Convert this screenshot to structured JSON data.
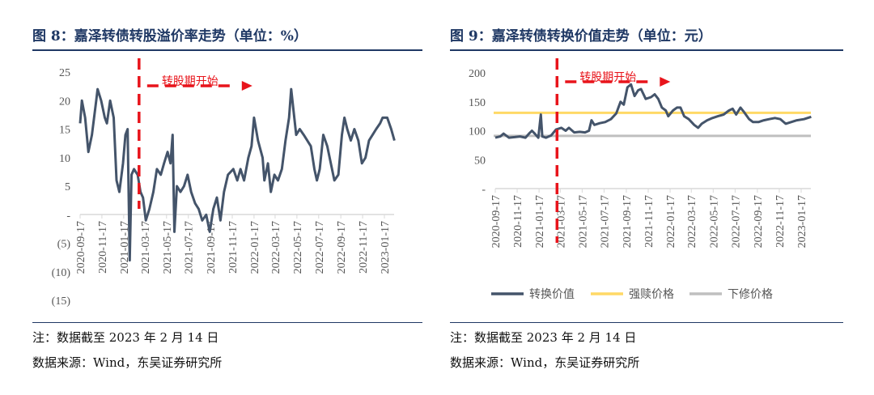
{
  "left": {
    "title": "图 8：嘉泽转债转股溢价率走势（单位：%）",
    "note": "注：数据截至 2023 年 2 月 14 日",
    "source": "数据来源：Wind，东吴证券研究所"
  },
  "right": {
    "title": "图 9：嘉泽转债转换价值走势（单位：元）",
    "note": "注：数据截至 2023 年 2 月 14 日",
    "source": "数据来源：Wind，东吴证券研究所"
  },
  "chart_data": [
    {
      "type": "line",
      "ylim": [
        -15,
        25
      ],
      "yticks": [
        25,
        20,
        15,
        10,
        5,
        0,
        -5,
        -10,
        -15
      ],
      "ytick_labels": [
        "25",
        "20",
        "15",
        "10",
        "5",
        "-",
        "(5)",
        "(10)",
        "(15)"
      ],
      "xticks": [
        "2020-09-17",
        "2020-11-17",
        "2021-01-17",
        "2021-03-17",
        "2021-05-17",
        "2021-07-17",
        "2021-09-17",
        "2021-11-17",
        "2022-01-17",
        "2022-03-17",
        "2022-05-17",
        "2022-07-17",
        "2022-09-17",
        "2022-11-17",
        "2023-01-17"
      ],
      "annotation": {
        "text": "转股期开始",
        "date": "2021-03-01"
      },
      "colors": {
        "line": "#44546a",
        "annotation": "#e8141b"
      },
      "series": [
        {
          "points": [
            [
              "2020-09-17",
              16
            ],
            [
              "2020-09-22",
              20
            ],
            [
              "2020-10-01",
              17
            ],
            [
              "2020-10-10",
              11
            ],
            [
              "2020-10-20",
              14
            ],
            [
              "2020-11-01",
              20
            ],
            [
              "2020-11-05",
              22
            ],
            [
              "2020-11-15",
              20
            ],
            [
              "2020-11-25",
              17
            ],
            [
              "2020-12-01",
              16
            ],
            [
              "2020-12-10",
              20
            ],
            [
              "2020-12-20",
              17
            ],
            [
              "2020-12-28",
              6
            ],
            [
              "2021-01-05",
              4
            ],
            [
              "2021-01-15",
              9
            ],
            [
              "2021-01-22",
              14
            ],
            [
              "2021-01-28",
              15
            ],
            [
              "2021-02-03",
              -8
            ],
            [
              "2021-02-08",
              7
            ],
            [
              "2021-02-15",
              8
            ],
            [
              "2021-02-25",
              7
            ],
            [
              "2021-03-05",
              4
            ],
            [
              "2021-03-12",
              3
            ],
            [
              "2021-03-20",
              -1
            ],
            [
              "2021-03-30",
              1
            ],
            [
              "2021-04-10",
              4
            ],
            [
              "2021-04-20",
              8
            ],
            [
              "2021-05-01",
              7
            ],
            [
              "2021-05-10",
              9
            ],
            [
              "2021-05-20",
              11
            ],
            [
              "2021-05-28",
              9
            ],
            [
              "2021-06-03",
              14
            ],
            [
              "2021-06-08",
              -3
            ],
            [
              "2021-06-15",
              5
            ],
            [
              "2021-06-25",
              4
            ],
            [
              "2021-07-05",
              5
            ],
            [
              "2021-07-15",
              7
            ],
            [
              "2021-07-25",
              4
            ],
            [
              "2021-08-05",
              2
            ],
            [
              "2021-08-15",
              1
            ],
            [
              "2021-08-25",
              -1
            ],
            [
              "2021-09-05",
              0
            ],
            [
              "2021-09-15",
              -3
            ],
            [
              "2021-09-25",
              1
            ],
            [
              "2021-10-05",
              3
            ],
            [
              "2021-10-15",
              -1
            ],
            [
              "2021-10-25",
              4
            ],
            [
              "2021-11-05",
              7
            ],
            [
              "2021-11-20",
              8
            ],
            [
              "2021-12-01",
              6
            ],
            [
              "2021-12-10",
              8
            ],
            [
              "2021-12-20",
              6
            ],
            [
              "2022-01-01",
              10
            ],
            [
              "2022-01-10",
              12
            ],
            [
              "2022-01-17",
              17
            ],
            [
              "2022-01-28",
              13
            ],
            [
              "2022-02-10",
              10
            ],
            [
              "2022-02-15",
              6
            ],
            [
              "2022-02-25",
              9
            ],
            [
              "2022-03-05",
              4
            ],
            [
              "2022-03-15",
              7
            ],
            [
              "2022-03-25",
              6
            ],
            [
              "2022-04-05",
              8
            ],
            [
              "2022-04-15",
              13
            ],
            [
              "2022-04-25",
              17
            ],
            [
              "2022-05-01",
              22
            ],
            [
              "2022-05-08",
              18
            ],
            [
              "2022-05-15",
              14
            ],
            [
              "2022-05-25",
              15
            ],
            [
              "2022-06-05",
              14
            ],
            [
              "2022-06-15",
              13
            ],
            [
              "2022-06-25",
              12
            ],
            [
              "2022-07-05",
              8
            ],
            [
              "2022-07-12",
              6
            ],
            [
              "2022-07-20",
              8
            ],
            [
              "2022-07-30",
              14
            ],
            [
              "2022-08-10",
              12
            ],
            [
              "2022-08-20",
              9
            ],
            [
              "2022-08-30",
              6
            ],
            [
              "2022-09-10",
              7
            ],
            [
              "2022-09-20",
              14
            ],
            [
              "2022-09-27",
              17
            ],
            [
              "2022-10-05",
              15
            ],
            [
              "2022-10-15",
              13
            ],
            [
              "2022-10-25",
              15
            ],
            [
              "2022-11-05",
              13
            ],
            [
              "2022-11-15",
              9
            ],
            [
              "2022-11-25",
              10
            ],
            [
              "2022-12-05",
              13
            ],
            [
              "2022-12-15",
              14
            ],
            [
              "2022-12-25",
              15
            ],
            [
              "2023-01-05",
              16
            ],
            [
              "2023-01-12",
              17
            ],
            [
              "2023-01-25",
              17
            ],
            [
              "2023-02-05",
              15
            ],
            [
              "2023-02-14",
              13
            ]
          ]
        }
      ]
    },
    {
      "type": "line",
      "ylim": [
        0,
        200
      ],
      "yticks": [
        200,
        150,
        100,
        50,
        0
      ],
      "ytick_labels": [
        "200",
        "150",
        "100",
        "50",
        "-"
      ],
      "xticks": [
        "2020-09-17",
        "2020-11-17",
        "2021-01-17",
        "2021-03-17",
        "2021-05-17",
        "2021-07-17",
        "2021-09-17",
        "2021-11-17",
        "2022-01-17",
        "2022-03-17",
        "2022-05-17",
        "2022-07-17",
        "2022-09-17",
        "2022-11-17",
        "2023-01-17"
      ],
      "annotation": {
        "text": "转股期开始",
        "date": "2021-03-08"
      },
      "legend": {
        "position": "bottom"
      },
      "colors": {
        "conversion": "#44546a",
        "redemption": "#ffd966",
        "revision": "#bfbfbf",
        "annotation": "#e8141b"
      },
      "series": [
        {
          "name": "转换价值",
          "points": [
            [
              "2020-09-17",
              88
            ],
            [
              "2020-10-01",
              90
            ],
            [
              "2020-10-10",
              95
            ],
            [
              "2020-10-25",
              88
            ],
            [
              "2020-11-10",
              89
            ],
            [
              "2020-11-25",
              90
            ],
            [
              "2020-12-10",
              88
            ],
            [
              "2020-12-20",
              95
            ],
            [
              "2020-12-28",
              100
            ],
            [
              "2021-01-05",
              95
            ],
            [
              "2021-01-15",
              88
            ],
            [
              "2021-01-22",
              128
            ],
            [
              "2021-01-26",
              90
            ],
            [
              "2021-02-05",
              88
            ],
            [
              "2021-02-20",
              92
            ],
            [
              "2021-03-05",
              102
            ],
            [
              "2021-03-20",
              105
            ],
            [
              "2021-04-01",
              100
            ],
            [
              "2021-04-10",
              105
            ],
            [
              "2021-04-25",
              97
            ],
            [
              "2021-05-10",
              98
            ],
            [
              "2021-05-25",
              97
            ],
            [
              "2021-06-05",
              100
            ],
            [
              "2021-06-12",
              118
            ],
            [
              "2021-06-20",
              110
            ],
            [
              "2021-07-05",
              113
            ],
            [
              "2021-07-20",
              115
            ],
            [
              "2021-08-05",
              120
            ],
            [
              "2021-08-20",
              130
            ],
            [
              "2021-09-01",
              150
            ],
            [
              "2021-09-10",
              145
            ],
            [
              "2021-09-20",
              175
            ],
            [
              "2021-09-30",
              180
            ],
            [
              "2021-10-10",
              160
            ],
            [
              "2021-10-20",
              170
            ],
            [
              "2021-10-28",
              172
            ],
            [
              "2021-11-10",
              155
            ],
            [
              "2021-11-25",
              158
            ],
            [
              "2021-12-05",
              163
            ],
            [
              "2021-12-15",
              155
            ],
            [
              "2021-12-25",
              140
            ],
            [
              "2022-01-05",
              135
            ],
            [
              "2022-01-12",
              125
            ],
            [
              "2022-01-25",
              135
            ],
            [
              "2022-02-05",
              140
            ],
            [
              "2022-02-15",
              140
            ],
            [
              "2022-02-25",
              125
            ],
            [
              "2022-03-10",
              120
            ],
            [
              "2022-03-25",
              110
            ],
            [
              "2022-04-05",
              105
            ],
            [
              "2022-04-15",
              112
            ],
            [
              "2022-04-30",
              118
            ],
            [
              "2022-05-15",
              122
            ],
            [
              "2022-05-30",
              125
            ],
            [
              "2022-06-15",
              128
            ],
            [
              "2022-06-30",
              135
            ],
            [
              "2022-07-10",
              138
            ],
            [
              "2022-07-20",
              128
            ],
            [
              "2022-08-01",
              140
            ],
            [
              "2022-08-10",
              133
            ],
            [
              "2022-08-25",
              120
            ],
            [
              "2022-09-05",
              115
            ],
            [
              "2022-09-20",
              115
            ],
            [
              "2022-10-05",
              118
            ],
            [
              "2022-10-20",
              120
            ],
            [
              "2022-11-05",
              122
            ],
            [
              "2022-11-20",
              120
            ],
            [
              "2022-12-05",
              112
            ],
            [
              "2022-12-20",
              115
            ],
            [
              "2023-01-05",
              118
            ],
            [
              "2023-01-25",
              120
            ],
            [
              "2023-02-14",
              124
            ]
          ]
        },
        {
          "name": "强赎价格",
          "value": 131
        },
        {
          "name": "下修价格",
          "value": 91
        }
      ]
    }
  ]
}
